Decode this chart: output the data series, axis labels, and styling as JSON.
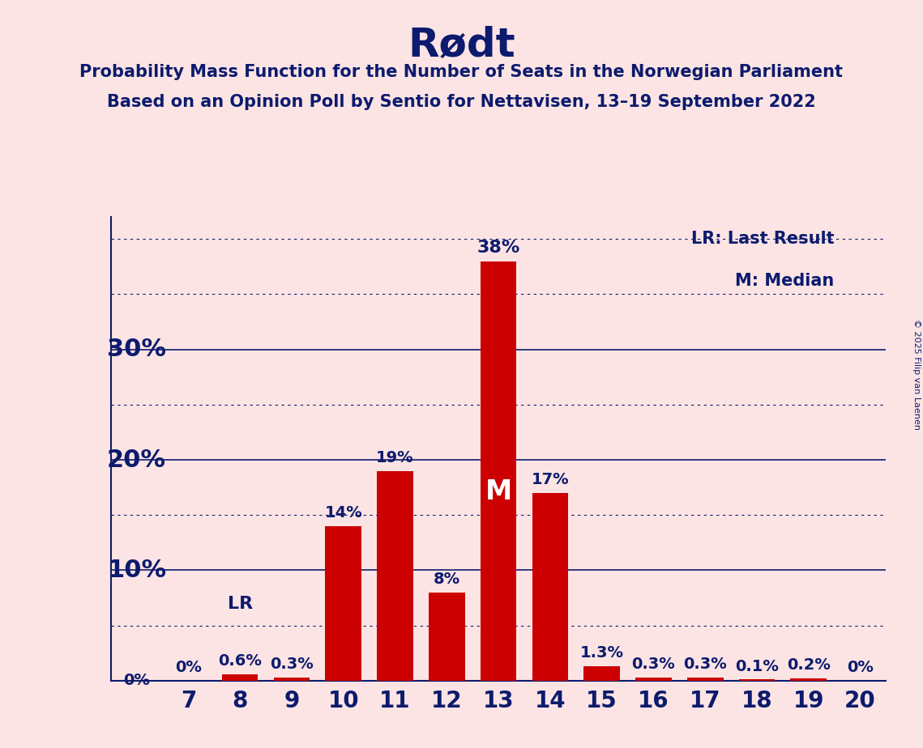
{
  "title": "Rødt",
  "subtitle1": "Probability Mass Function for the Number of Seats in the Norwegian Parliament",
  "subtitle2": "Based on an Opinion Poll by Sentio for Nettavisen, 13–19 September 2022",
  "copyright": "© 2025 Filip van Laenen",
  "seats": [
    7,
    8,
    9,
    10,
    11,
    12,
    13,
    14,
    15,
    16,
    17,
    18,
    19,
    20
  ],
  "probabilities": [
    0.0,
    0.6,
    0.3,
    14.0,
    19.0,
    8.0,
    38.0,
    17.0,
    1.3,
    0.3,
    0.3,
    0.1,
    0.2,
    0.0
  ],
  "bar_color": "#cc0000",
  "background_color": "#fce4e4",
  "title_color": "#0d1b6e",
  "median_seat": 13,
  "lr_seat": 8,
  "legend_lr": "LR: Last Result",
  "legend_m": "M: Median",
  "ylim_max": 42,
  "solid_yticks": [
    10,
    20,
    30
  ],
  "dotted_yticks": [
    5,
    15,
    25,
    35,
    40
  ]
}
